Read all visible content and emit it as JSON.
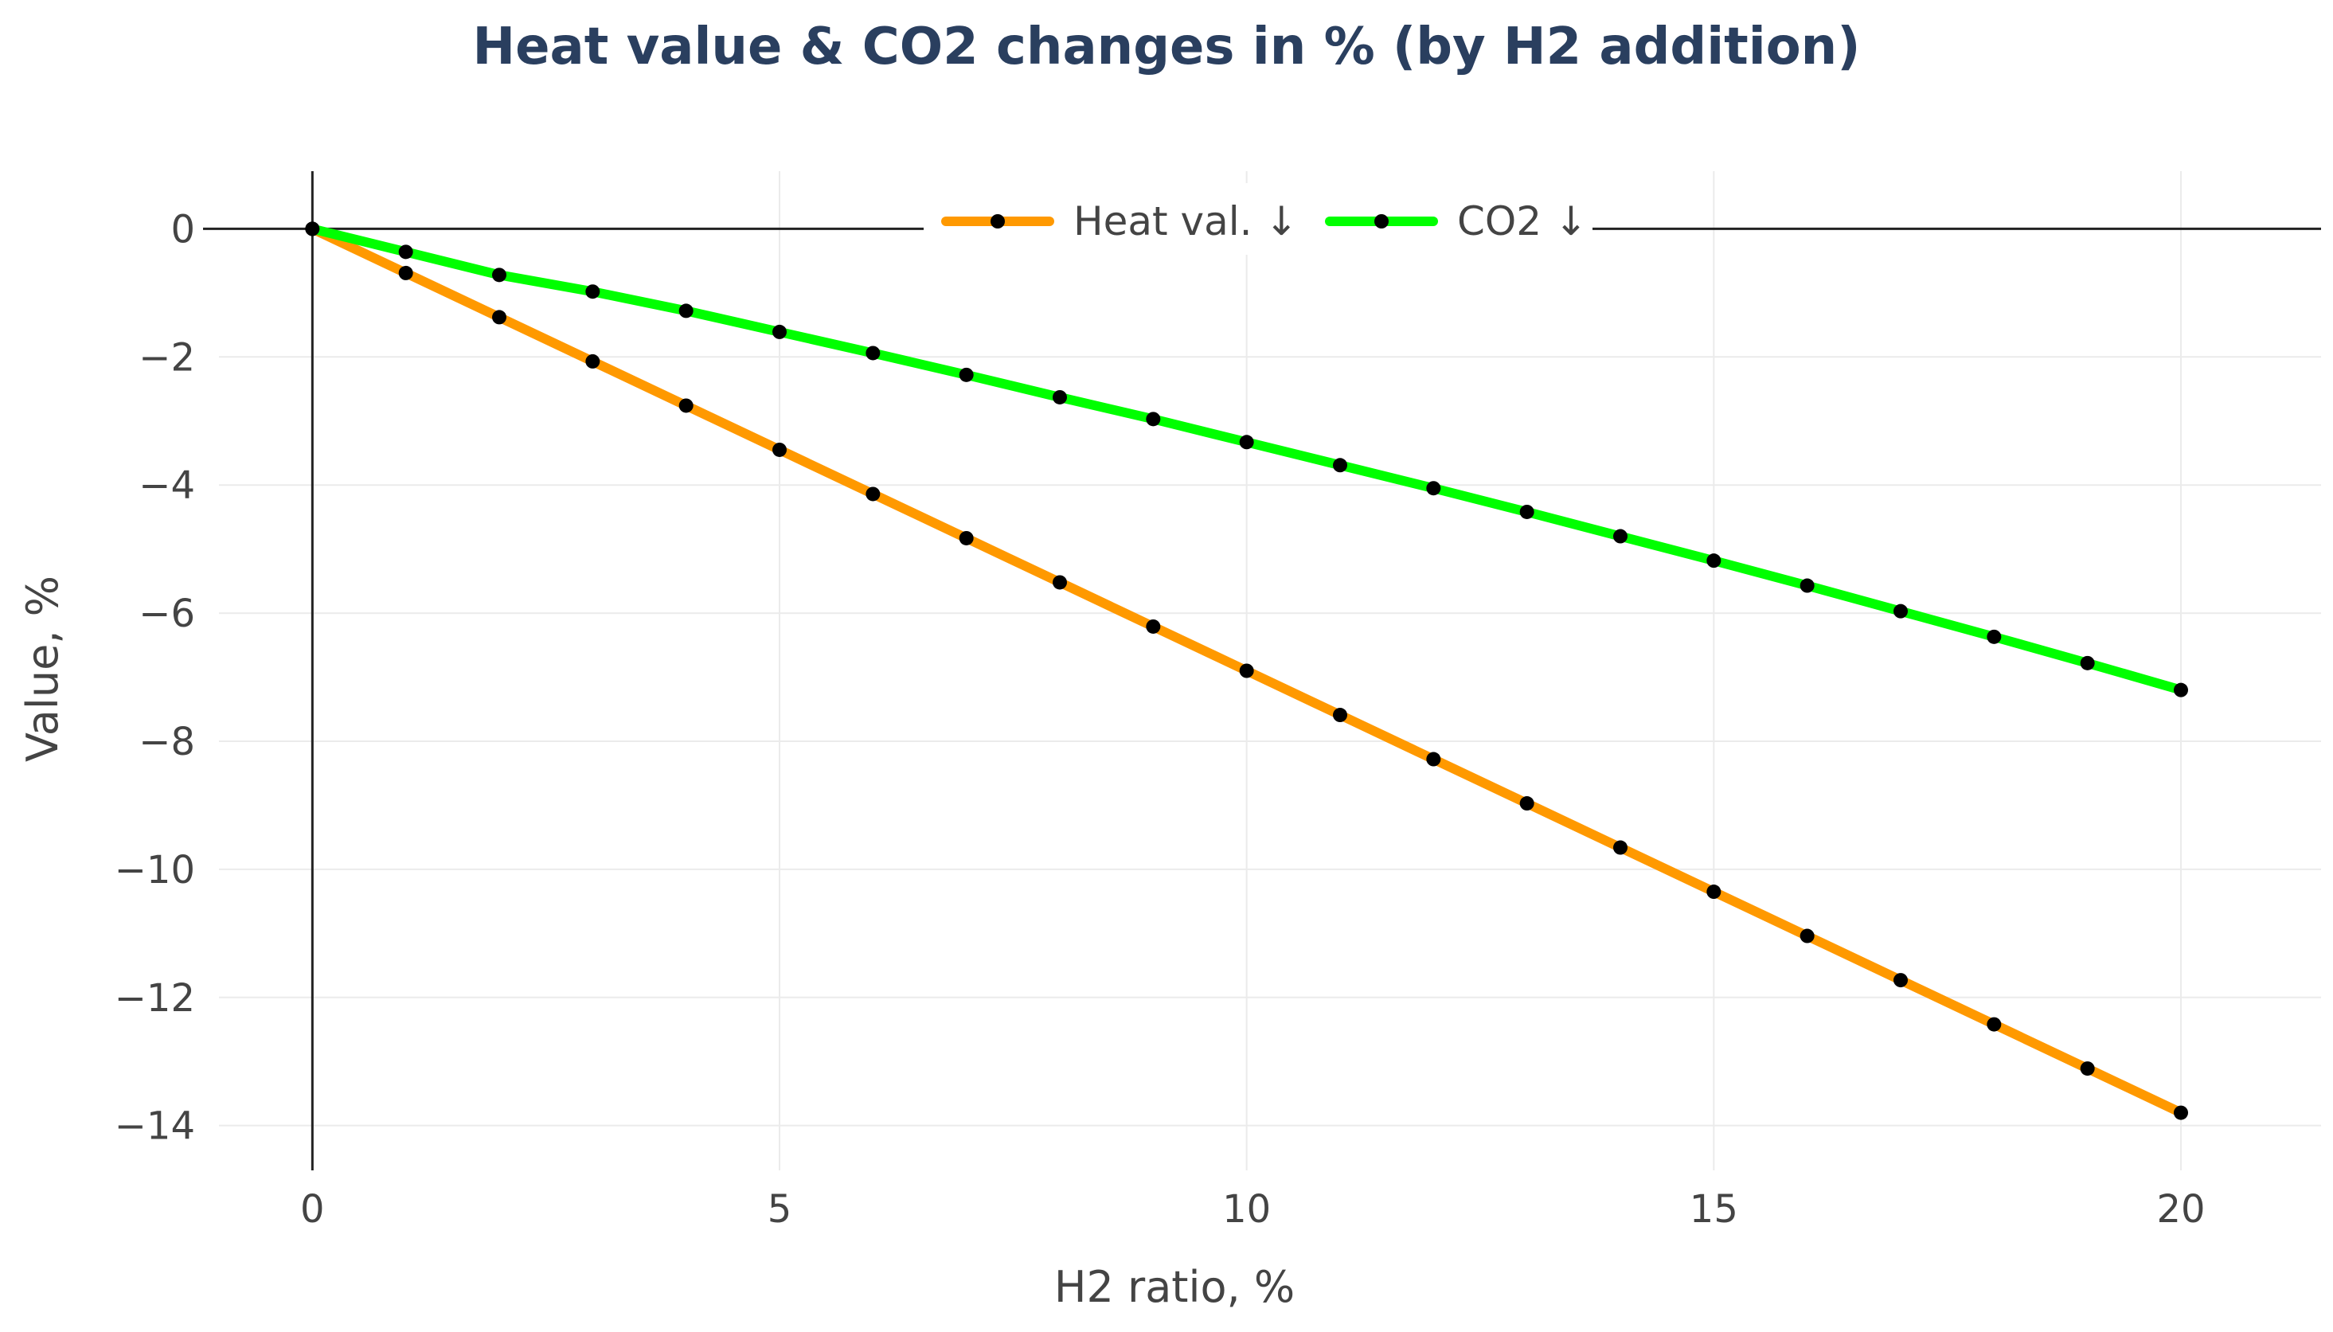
{
  "chart_data": {
    "type": "line",
    "title": "Heat value & CO2 changes in % (by H2 addition)",
    "xlabel": "H2 ratio, %",
    "ylabel": "Value, %",
    "xlim": [
      -1,
      21.5
    ],
    "ylim": [
      -14.7,
      0.9
    ],
    "xticks": [
      0,
      5,
      10,
      15,
      20
    ],
    "xtick_labels": [
      "0",
      "5",
      "10",
      "15",
      "20"
    ],
    "yticks": [
      0,
      -2,
      -4,
      -6,
      -8,
      -10,
      -12,
      -14
    ],
    "ytick_labels": [
      "0",
      "−2",
      "−4",
      "−6",
      "−8",
      "−10",
      "−12",
      "−14"
    ],
    "grid": true,
    "legend_position": "top-center",
    "x": [
      0,
      1,
      2,
      3,
      4,
      5,
      6,
      7,
      8,
      9,
      10,
      11,
      12,
      13,
      14,
      15,
      16,
      17,
      18,
      19,
      20
    ],
    "series": [
      {
        "name": "Heat val. ↓",
        "color": "#ff9900",
        "values": [
          0,
          -0.69,
          -1.38,
          -2.07,
          -2.76,
          -3.45,
          -4.14,
          -4.83,
          -5.52,
          -6.21,
          -6.9,
          -7.59,
          -8.28,
          -8.97,
          -9.66,
          -10.35,
          -11.04,
          -11.73,
          -12.42,
          -13.11,
          -13.8
        ]
      },
      {
        "name": "CO2 ↓",
        "color": "#00ff00",
        "values": [
          0,
          -0.36,
          -0.72,
          -0.98,
          -1.28,
          -1.61,
          -1.94,
          -2.28,
          -2.63,
          -2.97,
          -3.33,
          -3.69,
          -4.05,
          -4.42,
          -4.8,
          -5.18,
          -5.57,
          -5.97,
          -6.37,
          -6.78,
          -7.2
        ]
      }
    ],
    "marker_color": "#000000"
  }
}
